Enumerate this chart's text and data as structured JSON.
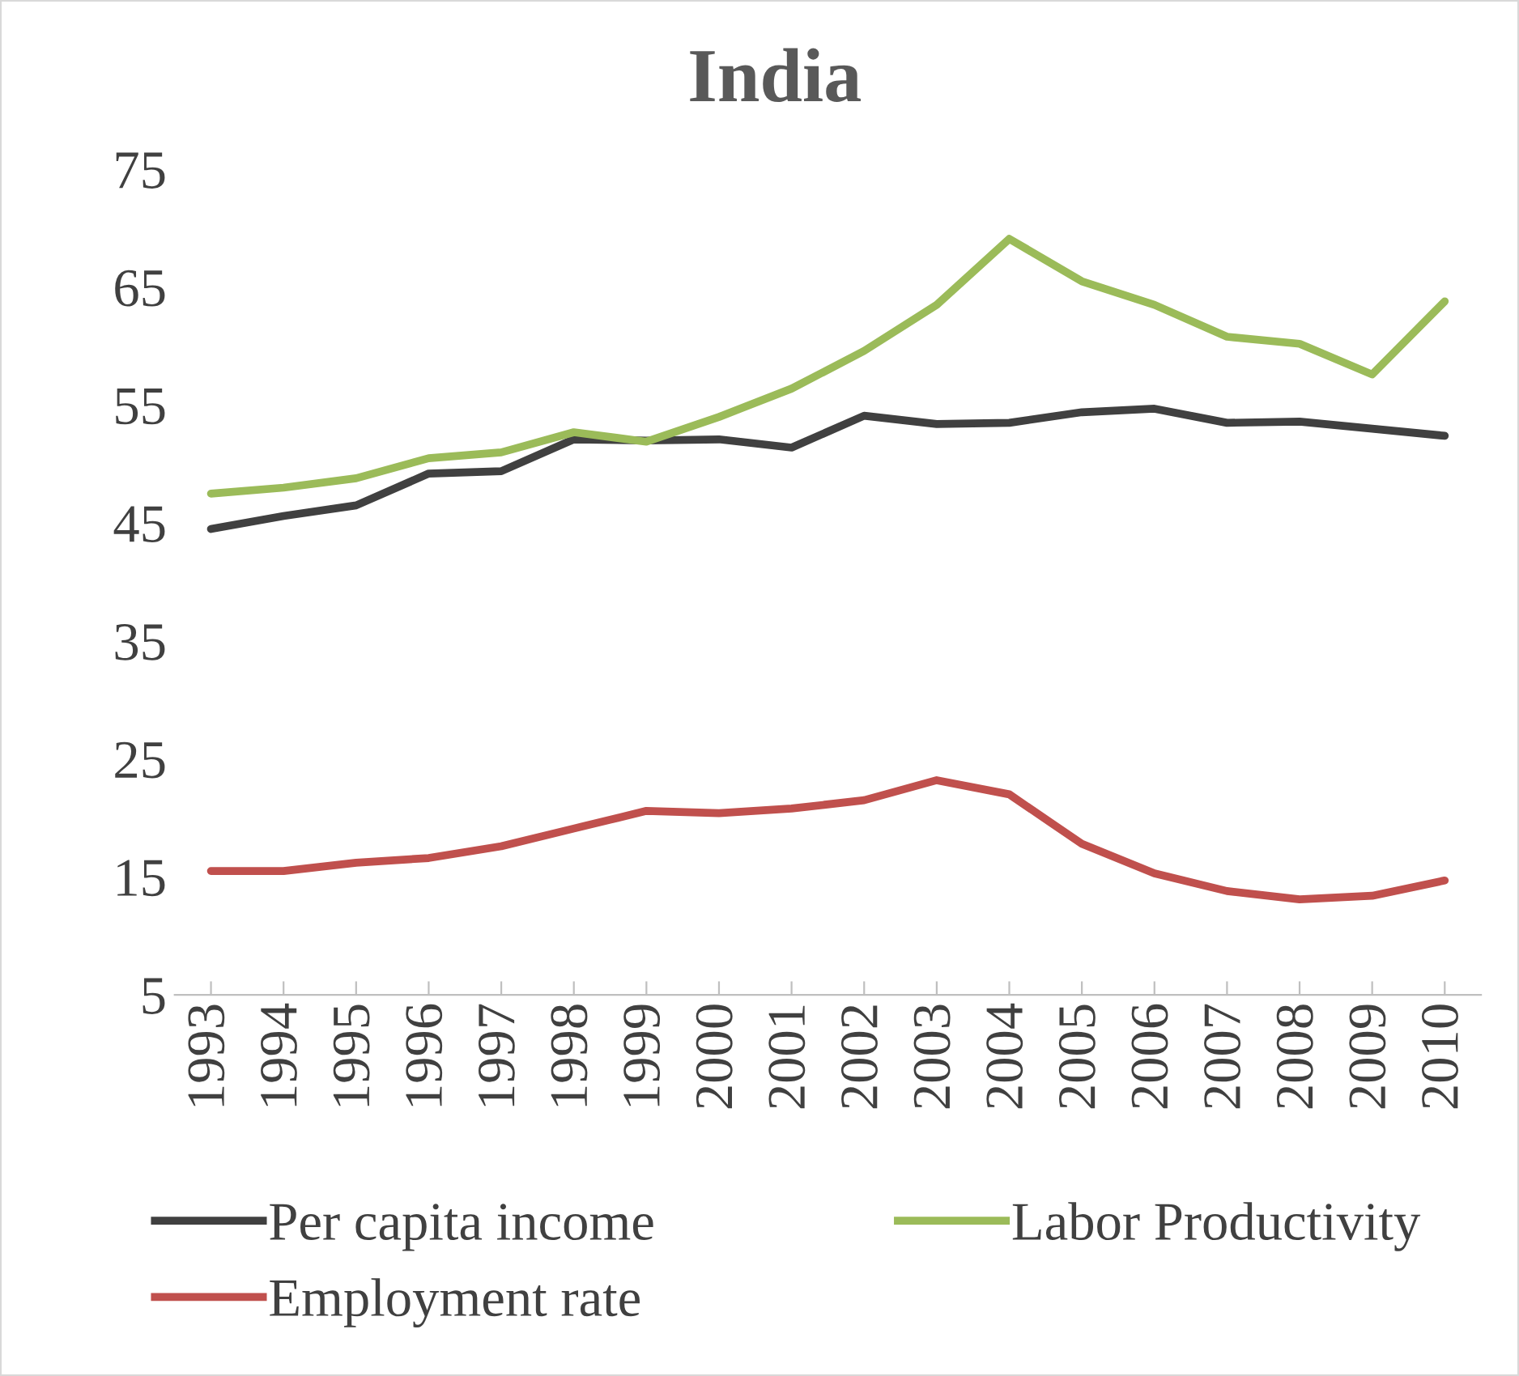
{
  "chart_data": {
    "type": "line",
    "title": "India",
    "categories": [
      "1993",
      "1994",
      "1995",
      "1996",
      "1997",
      "1998",
      "1999",
      "2000",
      "2001",
      "2002",
      "2003",
      "2004",
      "2005",
      "2006",
      "2007",
      "2008",
      "2009",
      "2010"
    ],
    "series": [
      {
        "name": "Per capita income",
        "color": "#404040",
        "values": [
          44.5,
          45.6,
          46.5,
          49.2,
          49.4,
          52.1,
          52.0,
          52.1,
          51.4,
          54.1,
          53.4,
          53.5,
          54.4,
          54.7,
          53.5,
          53.6,
          53.0,
          52.4
        ]
      },
      {
        "name": "Employment rate",
        "color": "#c0504d",
        "values": [
          15.5,
          15.5,
          16.2,
          16.6,
          17.6,
          19.1,
          20.6,
          20.4,
          20.8,
          21.5,
          23.2,
          22.0,
          17.8,
          15.3,
          13.8,
          13.1,
          13.4,
          14.7
        ]
      },
      {
        "name": "Labor Productivity",
        "color": "#9bbb59",
        "values": [
          47.5,
          48.0,
          48.8,
          50.5,
          51.0,
          52.7,
          51.9,
          54.0,
          56.4,
          59.6,
          63.5,
          69.1,
          65.5,
          63.5,
          60.8,
          60.2,
          57.6,
          63.8
        ]
      }
    ],
    "ylim": [
      5,
      75
    ],
    "yticks": [
      5,
      15,
      25,
      35,
      45,
      55,
      65,
      75
    ],
    "grid": false,
    "legend": "bottom",
    "marker": "none",
    "line_style": "solid"
  }
}
